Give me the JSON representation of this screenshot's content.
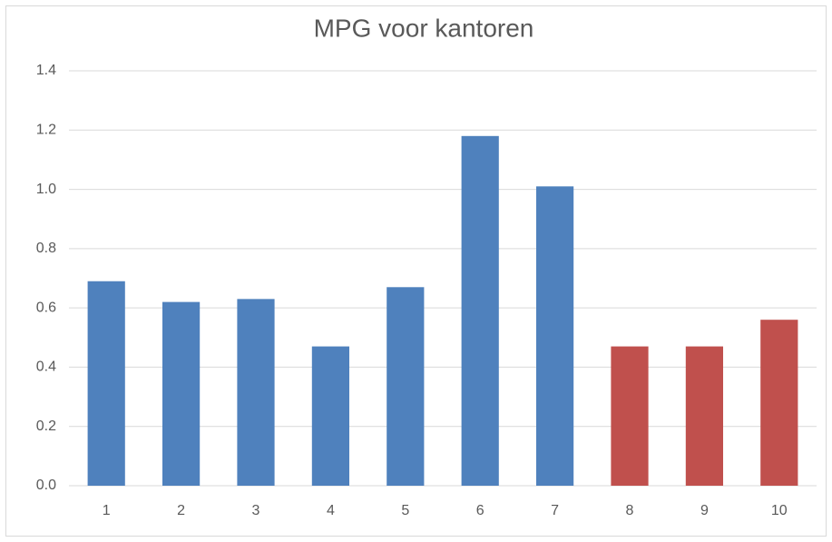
{
  "chart_data": {
    "type": "bar",
    "title": "MPG voor kantoren",
    "categories": [
      "1",
      "2",
      "3",
      "4",
      "5",
      "6",
      "7",
      "8",
      "9",
      "10"
    ],
    "values": [
      0.69,
      0.62,
      0.63,
      0.47,
      0.67,
      1.18,
      1.01,
      0.47,
      0.47,
      0.56
    ],
    "colors": [
      "#4f81bd",
      "#4f81bd",
      "#4f81bd",
      "#4f81bd",
      "#4f81bd",
      "#4f81bd",
      "#4f81bd",
      "#c0504d",
      "#c0504d",
      "#c0504d"
    ],
    "ylim": [
      0,
      1.4
    ],
    "yticks": [
      {
        "value": 0,
        "label": "0.0"
      },
      0.2,
      0.4,
      0.6,
      0.8,
      {
        "value": 1,
        "label": "1.0"
      },
      1.2,
      1.4
    ],
    "grid": true
  }
}
